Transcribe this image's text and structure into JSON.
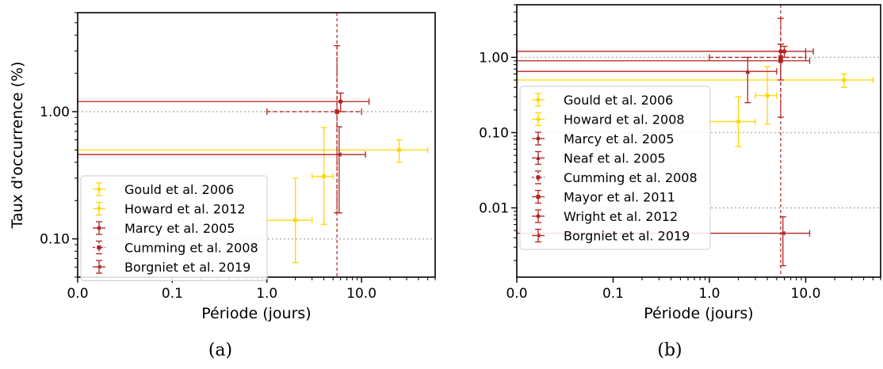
{
  "chart_data": [
    {
      "type": "scatter",
      "panel_label": "(a)",
      "xlabel": "Période (jours)",
      "ylabel": "Taux d'occurrence (%)",
      "xscale": "symlog",
      "yscale": "log",
      "xlim": [
        0,
        60
      ],
      "ylim": [
        0.05,
        6
      ],
      "xticks": [
        0.0,
        0.1,
        1.0,
        10.0
      ],
      "xtick_labels": [
        "0.0",
        "0.1",
        "1.0",
        "10.0"
      ],
      "yticks": [
        0.1,
        1.0
      ],
      "ytick_labels": [
        "0.10",
        "1.00"
      ],
      "hlines": [
        0.1,
        1.0
      ],
      "vline": 5.5,
      "legend_position": "lower left",
      "series": [
        {
          "name": "Gould et al. 2006",
          "color": "#FFD700",
          "marker": "dot",
          "points": [
            {
              "x": 2.0,
              "xmin": 1.0,
              "xmax": 3.0,
              "y": 0.14,
              "ymin": 0.065,
              "ymax": 0.3
            },
            {
              "x": 4.0,
              "xmin": 3.0,
              "xmax": 5.0,
              "y": 0.31,
              "ymin": 0.13,
              "ymax": 0.75
            }
          ]
        },
        {
          "name": "Howard et al. 2012",
          "color": "#FFD700",
          "marker": "dot",
          "points": [
            {
              "x": 25,
              "xmin": 0,
              "xmax": 50,
              "y": 0.5,
              "ymin": 0.4,
              "ymax": 0.6
            }
          ]
        },
        {
          "name": "Marcy et al. 2005",
          "color": "#B22222",
          "marker": "dot",
          "points": [
            {
              "x": 6.0,
              "xmin": 0,
              "xmax": 12,
              "y": 1.2,
              "ymin": 1.0,
              "ymax": 1.4
            }
          ]
        },
        {
          "name": "Cumming et al. 2008",
          "color": "#B22222",
          "marker": "square",
          "dashed": true,
          "points": [
            {
              "x": 5.5,
              "xmin": 1.0,
              "xmax": 10,
              "y": 1.0,
              "ymin": 0.16,
              "ymax": 3.3
            }
          ]
        },
        {
          "name": "Borgniet et al. 2019",
          "color": "#B22222",
          "marker": "triangle-left",
          "points": [
            {
              "x": 5.8,
              "xmin": 0,
              "xmax": 11,
              "y": 0.46,
              "ymin": 0.16,
              "ymax": 0.76
            }
          ]
        }
      ]
    },
    {
      "type": "scatter",
      "panel_label": "(b)",
      "xlabel": "Période (jours)",
      "ylabel": "",
      "xscale": "symlog",
      "yscale": "log",
      "xlim": [
        0,
        60
      ],
      "ylim": [
        0.0012,
        5
      ],
      "xticks": [
        0.0,
        0.1,
        1.0,
        10.0
      ],
      "xtick_labels": [
        "0.0",
        "0.1",
        "1.0",
        "10.0"
      ],
      "yticks": [
        0.01,
        0.1,
        1.0
      ],
      "ytick_labels": [
        "0.01",
        "0.10",
        "1.00"
      ],
      "hlines": [
        0.01,
        0.1,
        1.0
      ],
      "vline": 5.5,
      "legend_position": "lower left",
      "series": [
        {
          "name": "Gould et al. 2006",
          "color": "#FFD700",
          "marker": "dot",
          "points": [
            {
              "x": 2.0,
              "xmin": 1.0,
              "xmax": 3.0,
              "y": 0.14,
              "ymin": 0.065,
              "ymax": 0.3
            },
            {
              "x": 4.0,
              "xmin": 3.0,
              "xmax": 5.0,
              "y": 0.31,
              "ymin": 0.13,
              "ymax": 0.75
            }
          ]
        },
        {
          "name": "Howard et al. 2008",
          "color": "#FFD700",
          "marker": "dot",
          "points": [
            {
              "x": 25,
              "xmin": 0,
              "xmax": 50,
              "y": 0.5,
              "ymin": 0.4,
              "ymax": 0.6
            }
          ]
        },
        {
          "name": "Marcy et al. 2005",
          "color": "#B22222",
          "marker": "dot",
          "points": [
            {
              "x": 6.0,
              "xmin": 0,
              "xmax": 12,
              "y": 1.2,
              "ymin": 1.0,
              "ymax": 1.4
            }
          ]
        },
        {
          "name": "Neaf et al. 2005",
          "color": "#B22222",
          "marker": "triangle-up",
          "points": [
            {
              "x": 2.5,
              "xmin": 0,
              "xmax": 5,
              "y": 0.65,
              "ymin": 0.25,
              "ymax": 1.0
            }
          ]
        },
        {
          "name": "Cumming et al. 2008",
          "color": "#B22222",
          "marker": "square",
          "dashed": true,
          "points": [
            {
              "x": 5.5,
              "xmin": 1.0,
              "xmax": 10,
              "y": 1.0,
              "ymin": 0.16,
              "ymax": 3.3
            }
          ]
        },
        {
          "name": "Mayor et al. 2011",
          "color": "#B22222",
          "marker": "square",
          "points": [
            {
              "x": 5.5,
              "xmin": 0,
              "xmax": 11,
              "y": 0.9,
              "ymin": 0.5,
              "ymax": 1.5
            }
          ]
        },
        {
          "name": "Wright et al. 2012",
          "color": "#B22222",
          "marker": "dot",
          "points": [
            {
              "x": 5.5,
              "xmin": 0,
              "xmax": 10,
              "y": 1.2,
              "ymin": 0.9,
              "ymax": 1.5
            }
          ]
        },
        {
          "name": "Borgniet et al. 2019",
          "color": "#B22222",
          "marker": "triangle-left",
          "points": [
            {
              "x": 5.8,
              "xmin": 0,
              "xmax": 11,
              "y": 0.0046,
              "ymin": 0.0017,
              "ymax": 0.0076
            }
          ]
        }
      ]
    }
  ]
}
